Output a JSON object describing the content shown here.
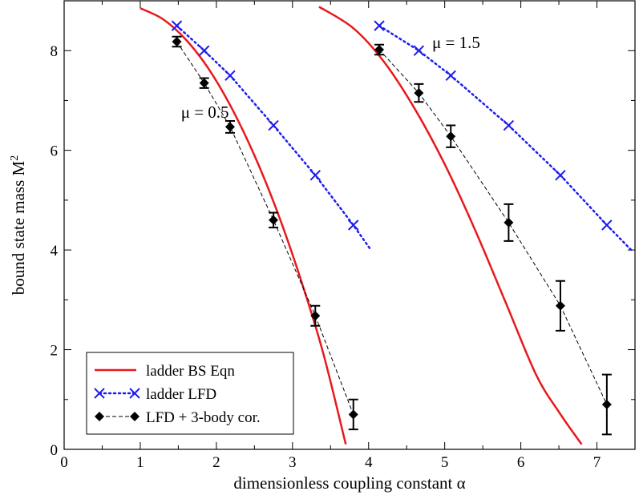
{
  "chart_data": {
    "type": "line",
    "xlabel": "dimensionless coupling constant α",
    "ylabel": "bound state mass M",
    "ylabel_sup": "2",
    "xlim": [
      0,
      7.5
    ],
    "ylim": [
      0,
      9
    ],
    "xticks": [
      0,
      1,
      2,
      3,
      4,
      5,
      6,
      7
    ],
    "yticks": [
      0,
      2,
      4,
      6,
      8
    ],
    "xtick_labels": [
      "0",
      "1",
      "2",
      "3",
      "4",
      "5",
      "6",
      "7"
    ],
    "ytick_labels": [
      "0",
      "2",
      "4",
      "6",
      "8"
    ],
    "legend_position": "bottom-left",
    "annotations": [
      {
        "text": "μ = 0.5",
        "x": 1.85,
        "y": 6.65
      },
      {
        "text": "μ = 1.5",
        "x": 5.15,
        "y": 8.05
      }
    ],
    "series": [
      {
        "name": "ladder BS Eqn",
        "style": "solid",
        "color": "#e8191c",
        "curves": [
          {
            "x": [
              1.0,
              1.3,
              1.6,
              1.9,
              2.2,
              2.5,
              2.8,
              3.1,
              3.4,
              3.7
            ],
            "y": [
              8.85,
              8.63,
              8.22,
              7.63,
              6.85,
              5.9,
              4.77,
              3.45,
              1.95,
              0.1
            ]
          },
          {
            "x": [
              3.35,
              3.8,
              4.2,
              4.6,
              5.0,
              5.4,
              5.8,
              6.2,
              6.5,
              6.8
            ],
            "y": [
              8.88,
              8.45,
              7.78,
              6.85,
              5.72,
              4.4,
              2.95,
              1.5,
              0.75,
              0.1
            ]
          }
        ]
      },
      {
        "name": "ladder LFD",
        "style": "dotted",
        "color": "#1d1df0",
        "marker": "x",
        "curves": [
          {
            "x": [
              1.48,
              1.84,
              2.18,
              2.75,
              3.3,
              3.8,
              4.03
            ],
            "y": [
              8.5,
              8.0,
              7.5,
              6.5,
              5.5,
              4.5,
              4.0
            ],
            "marker_count": 6
          },
          {
            "x": [
              4.14,
              4.66,
              5.08,
              5.84,
              6.52,
              7.13,
              7.45
            ],
            "y": [
              8.5,
              8.0,
              7.5,
              6.5,
              5.5,
              4.5,
              4.0
            ],
            "marker_count": 6
          }
        ]
      },
      {
        "name": "LFD + 3-body cor.",
        "style": "dashed",
        "color": "#000000",
        "marker": "diamond",
        "curves": [
          {
            "x": [
              1.48,
              1.84,
              2.18,
              2.75,
              3.3,
              3.8
            ],
            "y": [
              8.18,
              7.35,
              6.47,
              4.6,
              2.68,
              0.7
            ],
            "err": [
              0.1,
              0.1,
              0.12,
              0.15,
              0.2,
              0.3
            ]
          },
          {
            "x": [
              4.14,
              4.66,
              5.08,
              5.84,
              6.52,
              7.13
            ],
            "y": [
              8.02,
              7.15,
              6.28,
              4.55,
              2.88,
              0.9
            ],
            "err": [
              0.1,
              0.18,
              0.22,
              0.37,
              0.5,
              0.6
            ]
          }
        ]
      }
    ]
  }
}
